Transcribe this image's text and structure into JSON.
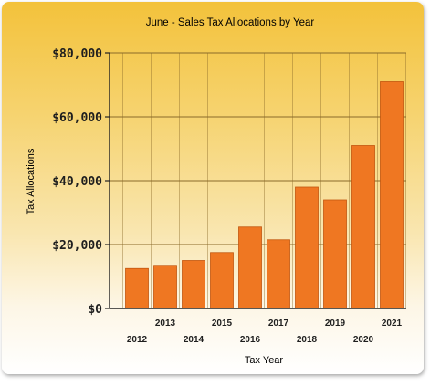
{
  "colors": {
    "bar": "#ef7722",
    "bar_edge": "#c2560f",
    "grid": "#8a6a2a",
    "axis": "#222222",
    "text": "#1e1e1e"
  },
  "chart_data": {
    "type": "bar",
    "title": "June - Sales Tax Allocations by Year",
    "xlabel": "Tax Year",
    "ylabel": "Tax Allocations",
    "categories": [
      "2012",
      "2013",
      "2014",
      "2015",
      "2016",
      "2017",
      "2018",
      "2019",
      "2020",
      "2021"
    ],
    "values": [
      12500,
      13500,
      15000,
      17500,
      25500,
      21500,
      38000,
      34000,
      51000,
      71000
    ],
    "ylim": [
      0,
      80000
    ],
    "yticks": [
      0,
      20000,
      40000,
      60000,
      80000
    ],
    "ytick_labels": [
      "$0",
      "$20,000",
      "$40,000",
      "$60,000",
      "$80,000"
    ],
    "grid": "vertical and horizontal",
    "legend": "none"
  }
}
